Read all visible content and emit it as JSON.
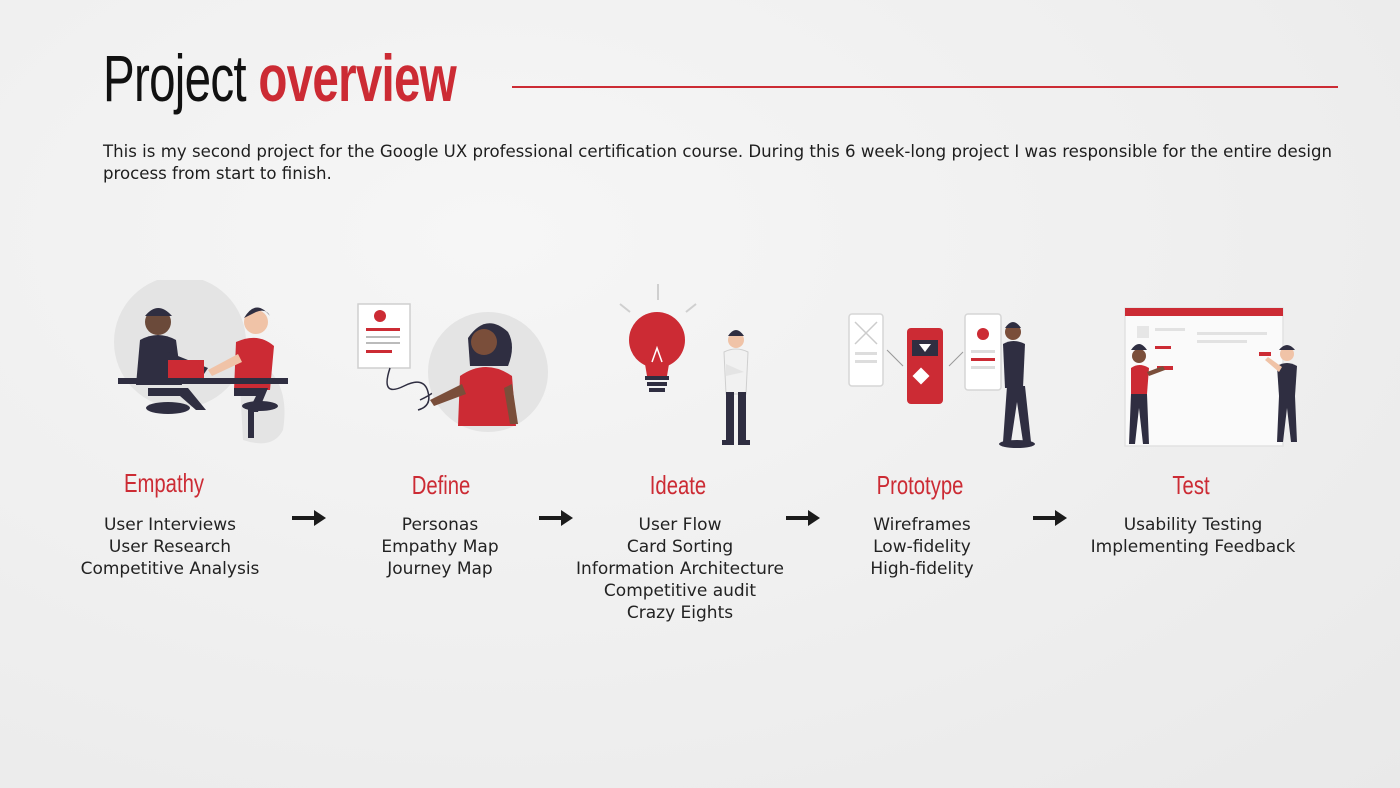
{
  "header": {
    "title_word1": "Project",
    "title_word2": "overview"
  },
  "intro": "This is my second project for the Google UX professional certification course. During this 6 week-long project I was responsible for the entire design process from start to finish.",
  "colors": {
    "accent": "#cc2b34",
    "dark": "#2f2e41",
    "text": "#1b1b1b"
  },
  "stages": [
    {
      "title": "Empathy",
      "icon": "handshake-illustration",
      "items": [
        "User Interviews",
        "User Research",
        "Competitive Analysis"
      ]
    },
    {
      "title": "Define",
      "icon": "persona-illustration",
      "items": [
        "Personas",
        "Empathy Map",
        "Journey Map"
      ]
    },
    {
      "title": "Ideate",
      "icon": "lightbulb-illustration",
      "items": [
        "User Flow",
        "Card Sorting",
        "Information Architecture",
        "Competitive audit",
        "Crazy Eights"
      ]
    },
    {
      "title": "Prototype",
      "icon": "wireframes-illustration",
      "items": [
        "Wireframes",
        "Low-fidelity",
        "High-fidelity"
      ]
    },
    {
      "title": "Test",
      "icon": "whiteboard-illustration",
      "items": [
        "Usability Testing",
        "Implementing Feedback"
      ]
    }
  ],
  "arrow_icon": "arrow-right-icon"
}
